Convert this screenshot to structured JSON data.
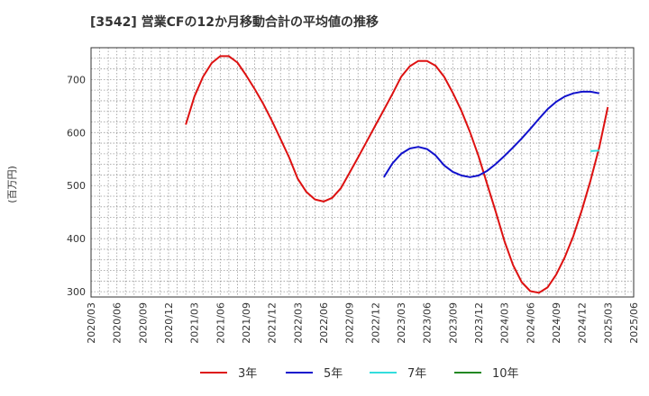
{
  "chart_data": {
    "type": "line",
    "title": "[3542]  営業CFの12か月移動合計の平均値の推移",
    "ylabel": "(百万円)",
    "xlabel": "",
    "ylim": [
      290,
      760
    ],
    "yticks": [
      300,
      400,
      500,
      600,
      700
    ],
    "grid": true,
    "legend_position": "bottom",
    "x_range": [
      "2020-03",
      "2025-06"
    ],
    "x_ticks": [
      "2020/03",
      "2020/06",
      "2020/09",
      "2020/12",
      "2021/03",
      "2021/06",
      "2021/09",
      "2021/12",
      "2022/03",
      "2022/06",
      "2022/09",
      "2022/12",
      "2023/03",
      "2023/06",
      "2023/09",
      "2023/12",
      "2024/03",
      "2024/06",
      "2024/09",
      "2024/12",
      "2025/03",
      "2025/06"
    ],
    "series": [
      {
        "name": "3年",
        "color": "#dd1111",
        "points": [
          [
            "2021-02",
            615
          ],
          [
            "2021-03",
            668
          ],
          [
            "2021-04",
            705
          ],
          [
            "2021-05",
            731
          ],
          [
            "2021-06",
            744
          ],
          [
            "2021-07",
            744
          ],
          [
            "2021-08",
            732
          ],
          [
            "2021-09",
            708
          ],
          [
            "2021-10",
            682
          ],
          [
            "2021-11",
            654
          ],
          [
            "2021-12",
            622
          ],
          [
            "2022-01",
            588
          ],
          [
            "2022-02",
            553
          ],
          [
            "2022-03",
            513
          ],
          [
            "2022-04",
            488
          ],
          [
            "2022-05",
            474
          ],
          [
            "2022-06",
            470
          ],
          [
            "2022-07",
            477
          ],
          [
            "2022-08",
            495
          ],
          [
            "2022-09",
            524
          ],
          [
            "2022-10",
            553
          ],
          [
            "2022-11",
            583
          ],
          [
            "2022-12",
            613
          ],
          [
            "2023-01",
            643
          ],
          [
            "2023-02",
            673
          ],
          [
            "2023-03",
            705
          ],
          [
            "2023-04",
            725
          ],
          [
            "2023-05",
            735
          ],
          [
            "2023-06",
            735
          ],
          [
            "2023-07",
            726
          ],
          [
            "2023-08",
            705
          ],
          [
            "2023-09",
            675
          ],
          [
            "2023-10",
            641
          ],
          [
            "2023-11",
            601
          ],
          [
            "2023-12",
            555
          ],
          [
            "2024-01",
            502
          ],
          [
            "2024-02",
            450
          ],
          [
            "2024-03",
            395
          ],
          [
            "2024-04",
            350
          ],
          [
            "2024-05",
            318
          ],
          [
            "2024-06",
            301
          ],
          [
            "2024-07",
            298
          ],
          [
            "2024-08",
            308
          ],
          [
            "2024-09",
            332
          ],
          [
            "2024-10",
            365
          ],
          [
            "2024-11",
            405
          ],
          [
            "2024-12",
            455
          ],
          [
            "2025-01",
            510
          ],
          [
            "2025-02",
            572
          ],
          [
            "2025-03",
            648
          ]
        ]
      },
      {
        "name": "5年",
        "color": "#1111cc",
        "points": [
          [
            "2023-01",
            516
          ],
          [
            "2023-02",
            542
          ],
          [
            "2023-03",
            560
          ],
          [
            "2023-04",
            570
          ],
          [
            "2023-05",
            573
          ],
          [
            "2023-06",
            569
          ],
          [
            "2023-07",
            557
          ],
          [
            "2023-08",
            538
          ],
          [
            "2023-09",
            526
          ],
          [
            "2023-10",
            519
          ],
          [
            "2023-11",
            516
          ],
          [
            "2023-12",
            519
          ],
          [
            "2024-01",
            528
          ],
          [
            "2024-02",
            541
          ],
          [
            "2024-03",
            556
          ],
          [
            "2024-04",
            572
          ],
          [
            "2024-05",
            589
          ],
          [
            "2024-06",
            607
          ],
          [
            "2024-07",
            626
          ],
          [
            "2024-08",
            644
          ],
          [
            "2024-09",
            658
          ],
          [
            "2024-10",
            668
          ],
          [
            "2024-11",
            674
          ],
          [
            "2024-12",
            677
          ],
          [
            "2025-01",
            677
          ],
          [
            "2025-02",
            674
          ]
        ]
      },
      {
        "name": "7年",
        "color": "#33dddd",
        "points": [
          [
            "2025-01",
            565
          ],
          [
            "2025-02",
            566
          ]
        ]
      },
      {
        "name": "10年",
        "color": "#228822",
        "points": []
      }
    ]
  }
}
